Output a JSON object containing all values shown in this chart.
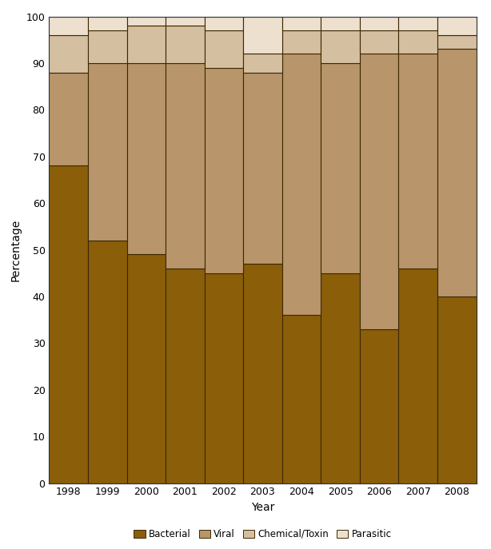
{
  "years": [
    1998,
    1999,
    2000,
    2001,
    2002,
    2003,
    2004,
    2005,
    2006,
    2007,
    2008
  ],
  "bacterial": [
    68,
    52,
    49,
    46,
    45,
    47,
    36,
    45,
    33,
    46,
    40
  ],
  "viral": [
    20,
    38,
    41,
    44,
    44,
    41,
    56,
    45,
    59,
    46,
    53
  ],
  "chemical": [
    8,
    7,
    8,
    8,
    8,
    4,
    5,
    7,
    5,
    5,
    3
  ],
  "parasitic": [
    4,
    3,
    2,
    2,
    3,
    8,
    3,
    3,
    3,
    3,
    4
  ],
  "color_bacterial": "#8B5E0A",
  "color_viral": "#B8956A",
  "color_chemical": "#D4BFA0",
  "color_parasitic": "#EDE0CF",
  "xlabel": "Year",
  "ylabel": "Percentage",
  "ylim": [
    0,
    100
  ],
  "yticks": [
    0,
    10,
    20,
    30,
    40,
    50,
    60,
    70,
    80,
    90,
    100
  ],
  "legend_labels": [
    "Bacterial",
    "Viral",
    "Chemical/Toxin",
    "Parasitic"
  ],
  "bar_width": 1.0,
  "edgecolor": "#3C2800",
  "background_color": "#FFFFFF",
  "figsize": [
    6.14,
    6.87
  ],
  "dpi": 100
}
